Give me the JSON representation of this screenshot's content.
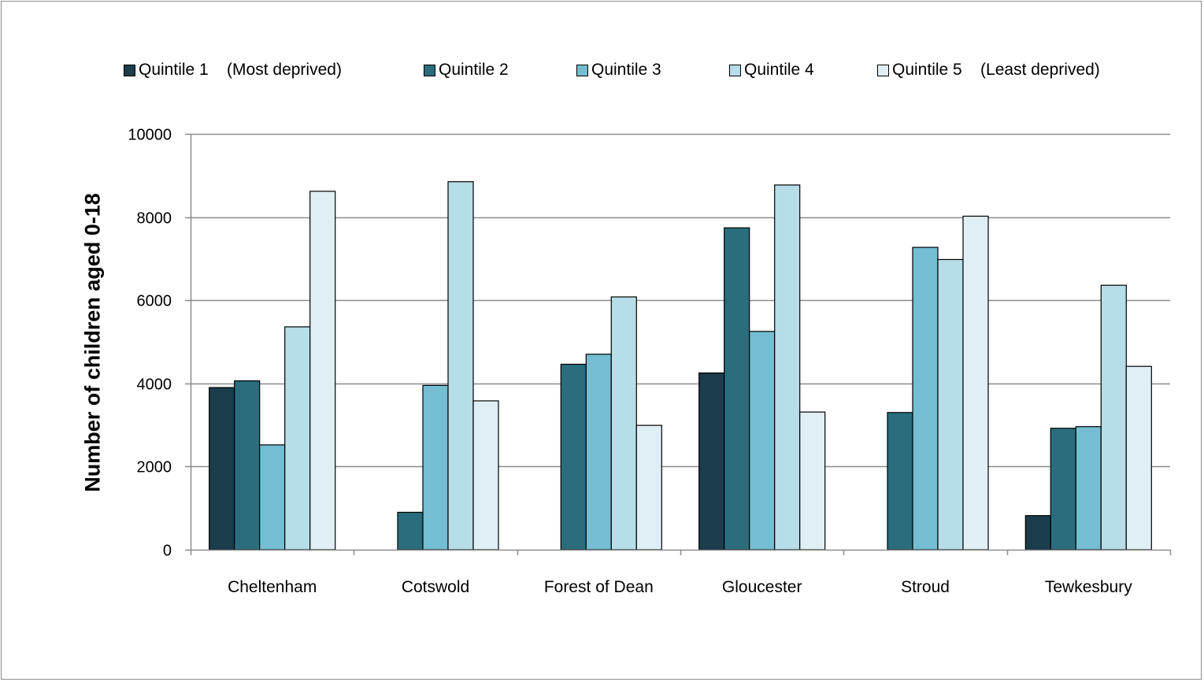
{
  "chart_data": {
    "type": "bar",
    "title": "",
    "xlabel": "",
    "ylabel": "Number of children aged 0-18",
    "ylim": [
      0,
      10000
    ],
    "yticks": [
      0,
      2000,
      4000,
      6000,
      8000,
      10000
    ],
    "grid": true,
    "legend_position": "top",
    "categories": [
      "Cheltenham",
      "Cotswold",
      "Forest of Dean",
      "Gloucester",
      "Stroud",
      "Tewkesbury"
    ],
    "series": [
      {
        "name": "Quintile 1    (Most deprived)",
        "color": "#1b3d4c",
        "values": [
          3900,
          0,
          0,
          4250,
          0,
          820
        ]
      },
      {
        "name": "Quintile 2",
        "color": "#2a6e7e",
        "values": [
          4060,
          900,
          4460,
          7740,
          3300,
          2920
        ]
      },
      {
        "name": "Quintile 3",
        "color": "#74bdd3",
        "values": [
          2520,
          3950,
          4700,
          5250,
          7270,
          2960
        ]
      },
      {
        "name": "Quintile 4",
        "color": "#b6dde8",
        "values": [
          5360,
          8850,
          6080,
          8770,
          6980,
          6360
        ]
      },
      {
        "name": "Quintile 5    (Least deprived)",
        "color": "#dfeff5",
        "values": [
          8620,
          3580,
          2990,
          3310,
          8020,
          4410
        ]
      }
    ]
  }
}
